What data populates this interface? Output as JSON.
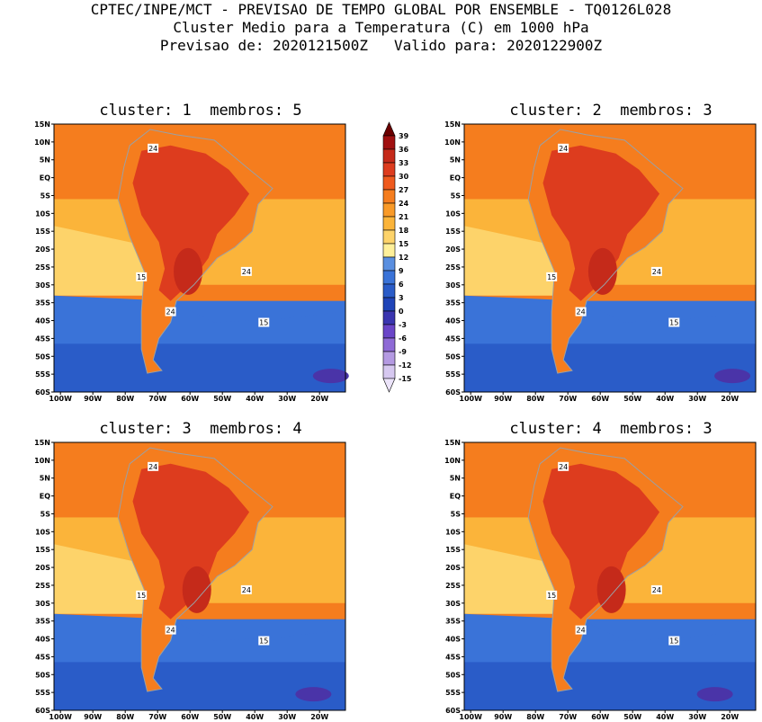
{
  "header": {
    "line1": "CPTEC/INPE/MCT - PREVISAO DE TEMPO GLOBAL POR ENSEMBLE - TQ0126L028",
    "line2": "Cluster Medio para a Temperatura (C) em 1000 hPa",
    "line3": "Previsao de: 2020121500Z   Valido para: 2020122900Z"
  },
  "panels": [
    {
      "title": "cluster: 1  membros: 5"
    },
    {
      "title": "cluster: 2  membros: 3"
    },
    {
      "title": "cluster: 3  membros: 4"
    },
    {
      "title": "cluster: 4  membros: 3"
    }
  ],
  "axes": {
    "lat_labels": [
      "15N",
      "10N",
      "5N",
      "EQ",
      "5S",
      "10S",
      "15S",
      "20S",
      "25S",
      "30S",
      "35S",
      "40S",
      "45S",
      "50S",
      "55S",
      "60S"
    ],
    "lon_labels": [
      "100W",
      "90W",
      "80W",
      "70W",
      "60W",
      "50W",
      "40W",
      "30W",
      "20W"
    ]
  },
  "contour_labels": [
    "24",
    "24",
    "15",
    "24",
    "15"
  ],
  "colorbar": {
    "labels": [
      "39",
      "36",
      "33",
      "30",
      "27",
      "24",
      "21",
      "18",
      "15",
      "12",
      "9",
      "6",
      "3",
      "0",
      "-3",
      "-6",
      "-9",
      "-12",
      "-15"
    ],
    "colors": [
      "#6b0000",
      "#a01010",
      "#c52a1a",
      "#dd3c1e",
      "#ef5a1e",
      "#f57d1e",
      "#f99a28",
      "#fbb43a",
      "#fdd36a",
      "#fff09a",
      "#5a8fe0",
      "#3a73d8",
      "#2a5cc8",
      "#1f44b8",
      "#3a35b0",
      "#6a45c8",
      "#8e6ad6",
      "#b49ae2",
      "#d6c8f0",
      "#ece4fa"
    ],
    "units": "C"
  },
  "colors": {
    "hot": "#dd3c1e",
    "warm": "#f57d1e",
    "mild": "#fbb43a",
    "pale": "#fdd36a",
    "cold": "#3a73d8",
    "purple": "#4a34a8",
    "border": "#9aa0a6"
  }
}
